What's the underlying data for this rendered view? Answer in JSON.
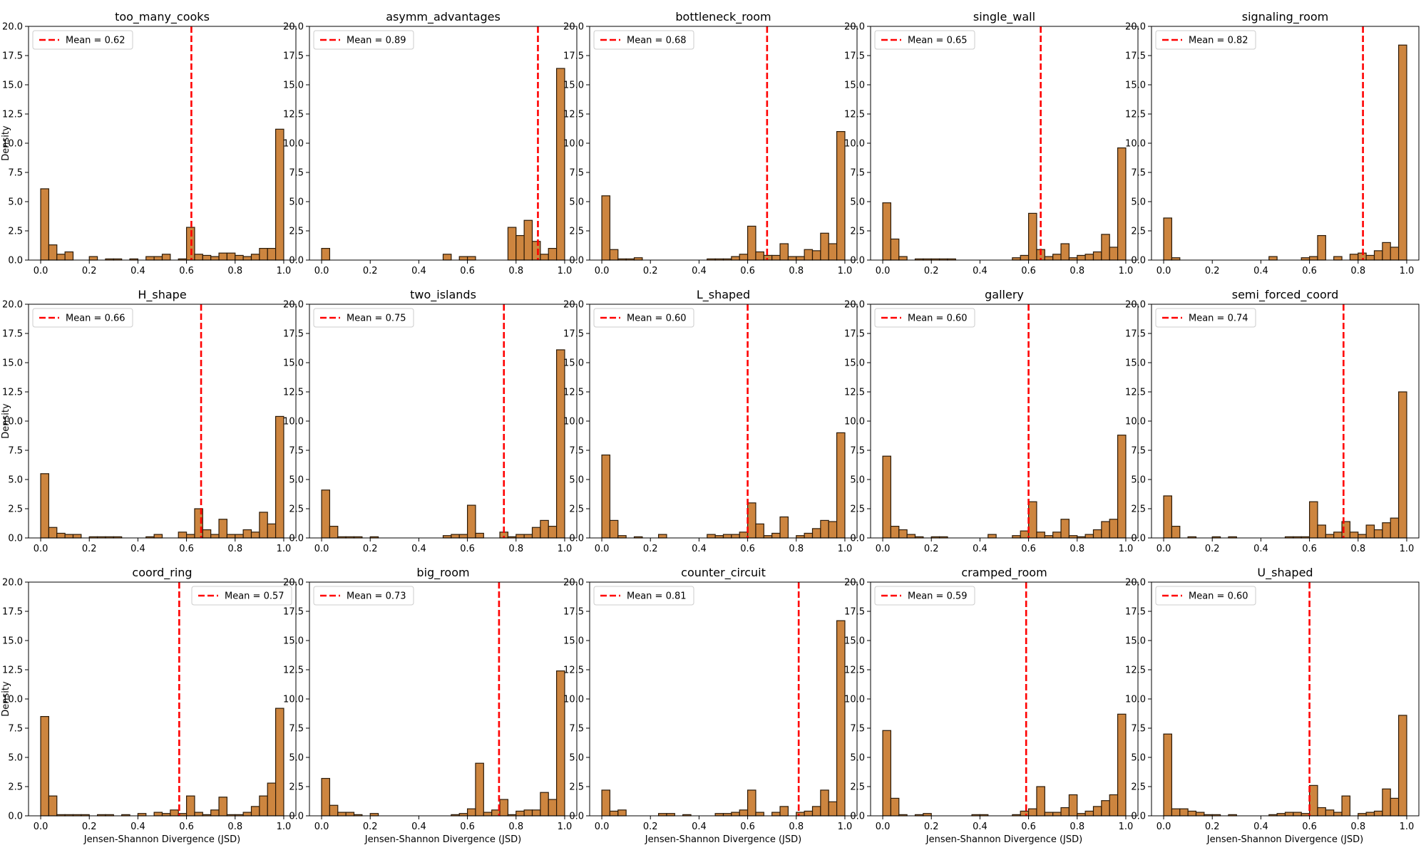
{
  "figure": {
    "xlabel": "Jensen-Shannon Divergence (JSD)",
    "ylabel": "Density",
    "bar_color": "#cd853f",
    "edge_color": "#2b1a08",
    "mean_color": "#ff0000",
    "mean_label_prefix": "Mean = ",
    "x_ticks": [
      0.0,
      0.2,
      0.4,
      0.6,
      0.8,
      1.0
    ],
    "y_ticks": [
      0.0,
      2.5,
      5.0,
      7.5,
      10.0,
      12.5,
      15.0,
      17.5,
      20.0
    ],
    "xlim": [
      -0.05,
      1.05
    ],
    "ylim": [
      0,
      20
    ],
    "bins": 30,
    "bin_range": [
      0,
      1
    ]
  },
  "chart_data": [
    {
      "type": "bar",
      "title": "too_many_cooks",
      "mean": 0.62,
      "legend": "upper-left",
      "values": [
        6.1,
        1.3,
        0.5,
        0.7,
        0,
        0,
        0.3,
        0,
        0.1,
        0.1,
        0,
        0.1,
        0,
        0.3,
        0.3,
        0.5,
        0,
        0.1,
        2.8,
        0.5,
        0.4,
        0.3,
        0.6,
        0.6,
        0.4,
        0.3,
        0.5,
        1.0,
        1.0,
        11.2
      ]
    },
    {
      "type": "bar",
      "title": "asymm_advantages",
      "mean": 0.89,
      "legend": "upper-left",
      "values": [
        1.0,
        0,
        0,
        0,
        0,
        0,
        0,
        0,
        0,
        0,
        0,
        0,
        0,
        0,
        0,
        0.5,
        0,
        0.3,
        0.3,
        0,
        0,
        0,
        0,
        2.8,
        2.1,
        3.4,
        1.6,
        0.5,
        1.0,
        16.4
      ]
    },
    {
      "type": "bar",
      "title": "bottleneck_room",
      "mean": 0.68,
      "legend": "upper-left",
      "values": [
        5.5,
        0.9,
        0.1,
        0.1,
        0.2,
        0,
        0,
        0,
        0,
        0,
        0,
        0,
        0,
        0.1,
        0.1,
        0.1,
        0.3,
        0.5,
        2.9,
        0.7,
        0.4,
        0.4,
        1.4,
        0.3,
        0.3,
        0.9,
        0.8,
        2.3,
        1.4,
        11.0
      ]
    },
    {
      "type": "bar",
      "title": "single_wall",
      "mean": 0.65,
      "legend": "upper-left",
      "values": [
        4.9,
        1.8,
        0.3,
        0,
        0.1,
        0.1,
        0.1,
        0.1,
        0.1,
        0,
        0,
        0,
        0,
        0,
        0,
        0,
        0.2,
        0.4,
        4.0,
        0.9,
        0.3,
        0.5,
        1.4,
        0.2,
        0.4,
        0.5,
        0.7,
        2.2,
        1.1,
        9.6
      ]
    },
    {
      "type": "bar",
      "title": "signaling_room",
      "mean": 0.82,
      "legend": "upper-left",
      "values": [
        3.6,
        0.2,
        0,
        0,
        0,
        0,
        0,
        0,
        0,
        0,
        0,
        0,
        0,
        0.3,
        0,
        0,
        0,
        0.2,
        0.3,
        2.1,
        0,
        0.3,
        0,
        0.5,
        0.6,
        0.4,
        0.8,
        1.5,
        1.1,
        18.4
      ]
    },
    {
      "type": "bar",
      "title": "H_shape",
      "mean": 0.66,
      "legend": "upper-left",
      "values": [
        5.5,
        0.9,
        0.4,
        0.3,
        0.3,
        0,
        0.1,
        0.1,
        0.1,
        0.1,
        0,
        0,
        0,
        0.1,
        0.3,
        0,
        0,
        0.5,
        0.3,
        2.5,
        0.7,
        0.3,
        1.6,
        0.3,
        0.3,
        0.7,
        0.5,
        2.2,
        1.2,
        10.4
      ]
    },
    {
      "type": "bar",
      "title": "two_islands",
      "mean": 0.75,
      "legend": "upper-left",
      "values": [
        4.1,
        1.0,
        0.1,
        0.1,
        0.1,
        0,
        0.1,
        0,
        0,
        0,
        0,
        0,
        0,
        0,
        0,
        0.2,
        0.3,
        0.3,
        2.8,
        0.4,
        0,
        0,
        0.5,
        0.1,
        0.3,
        0.3,
        0.9,
        1.5,
        1.0,
        16.1
      ]
    },
    {
      "type": "bar",
      "title": "L_shaped",
      "mean": 0.6,
      "legend": "upper-left",
      "values": [
        7.1,
        1.5,
        0.2,
        0,
        0.1,
        0,
        0,
        0.3,
        0,
        0,
        0,
        0,
        0,
        0.3,
        0.2,
        0.3,
        0.3,
        0.5,
        3.0,
        1.2,
        0.2,
        0.4,
        1.8,
        0,
        0.2,
        0.4,
        0.8,
        1.5,
        1.4,
        9.0
      ]
    },
    {
      "type": "bar",
      "title": "gallery",
      "mean": 0.6,
      "legend": "upper-left",
      "values": [
        7.0,
        1.0,
        0.7,
        0.3,
        0.1,
        0,
        0.1,
        0.1,
        0,
        0,
        0,
        0,
        0,
        0.3,
        0,
        0,
        0.2,
        0.6,
        3.1,
        0.5,
        0.2,
        0.5,
        1.6,
        0.2,
        0.1,
        0.3,
        0.7,
        1.4,
        1.6,
        8.8
      ]
    },
    {
      "type": "bar",
      "title": "semi_forced_coord",
      "mean": 0.74,
      "legend": "upper-left",
      "values": [
        3.6,
        1.0,
        0,
        0.1,
        0,
        0,
        0.1,
        0,
        0.1,
        0,
        0,
        0,
        0,
        0,
        0,
        0.1,
        0.1,
        0.1,
        3.1,
        1.1,
        0.3,
        0.5,
        1.4,
        0.5,
        0.3,
        1.1,
        0.7,
        1.3,
        1.7,
        12.5
      ]
    },
    {
      "type": "bar",
      "title": "coord_ring",
      "mean": 0.57,
      "legend": "upper-right",
      "values": [
        8.5,
        1.7,
        0.1,
        0.1,
        0.1,
        0.1,
        0,
        0.1,
        0.1,
        0,
        0.1,
        0,
        0.2,
        0,
        0.3,
        0.2,
        0.5,
        0.2,
        1.7,
        0.3,
        0.1,
        0.5,
        1.6,
        0.1,
        0.1,
        0.3,
        0.8,
        1.7,
        2.8,
        9.2
      ]
    },
    {
      "type": "bar",
      "title": "big_room",
      "mean": 0.73,
      "legend": "upper-left",
      "values": [
        3.2,
        0.9,
        0.3,
        0.3,
        0.1,
        0,
        0.2,
        0,
        0,
        0,
        0,
        0,
        0,
        0,
        0,
        0,
        0.1,
        0.2,
        0.6,
        4.5,
        0.3,
        0.5,
        1.4,
        0.1,
        0.4,
        0.5,
        0.5,
        2.0,
        1.4,
        12.4
      ]
    },
    {
      "type": "bar",
      "title": "counter_circuit",
      "mean": 0.81,
      "legend": "upper-left",
      "values": [
        2.2,
        0.4,
        0.5,
        0,
        0,
        0,
        0,
        0.2,
        0.2,
        0,
        0.1,
        0,
        0,
        0,
        0.2,
        0.2,
        0.3,
        0.5,
        2.2,
        0.3,
        0,
        0.3,
        0.8,
        0,
        0.3,
        0.4,
        0.8,
        2.2,
        1.2,
        16.7
      ]
    },
    {
      "type": "bar",
      "title": "cramped_room",
      "mean": 0.59,
      "legend": "upper-left",
      "values": [
        7.3,
        1.5,
        0.1,
        0,
        0.1,
        0.2,
        0,
        0,
        0,
        0,
        0,
        0.1,
        0.1,
        0,
        0,
        0,
        0.1,
        0.4,
        0.6,
        2.5,
        0.3,
        0.3,
        0.7,
        1.8,
        0.2,
        0.4,
        0.8,
        1.3,
        1.8,
        8.7
      ]
    },
    {
      "type": "bar",
      "title": "U_shaped",
      "mean": 0.6,
      "legend": "upper-left",
      "values": [
        7.0,
        0.6,
        0.6,
        0.4,
        0.3,
        0.1,
        0.1,
        0,
        0.1,
        0,
        0,
        0,
        0,
        0.1,
        0.2,
        0.3,
        0.3,
        0.2,
        2.6,
        0.7,
        0.5,
        0.3,
        1.7,
        0,
        0.2,
        0.3,
        0.4,
        2.3,
        1.5,
        8.6
      ]
    }
  ]
}
